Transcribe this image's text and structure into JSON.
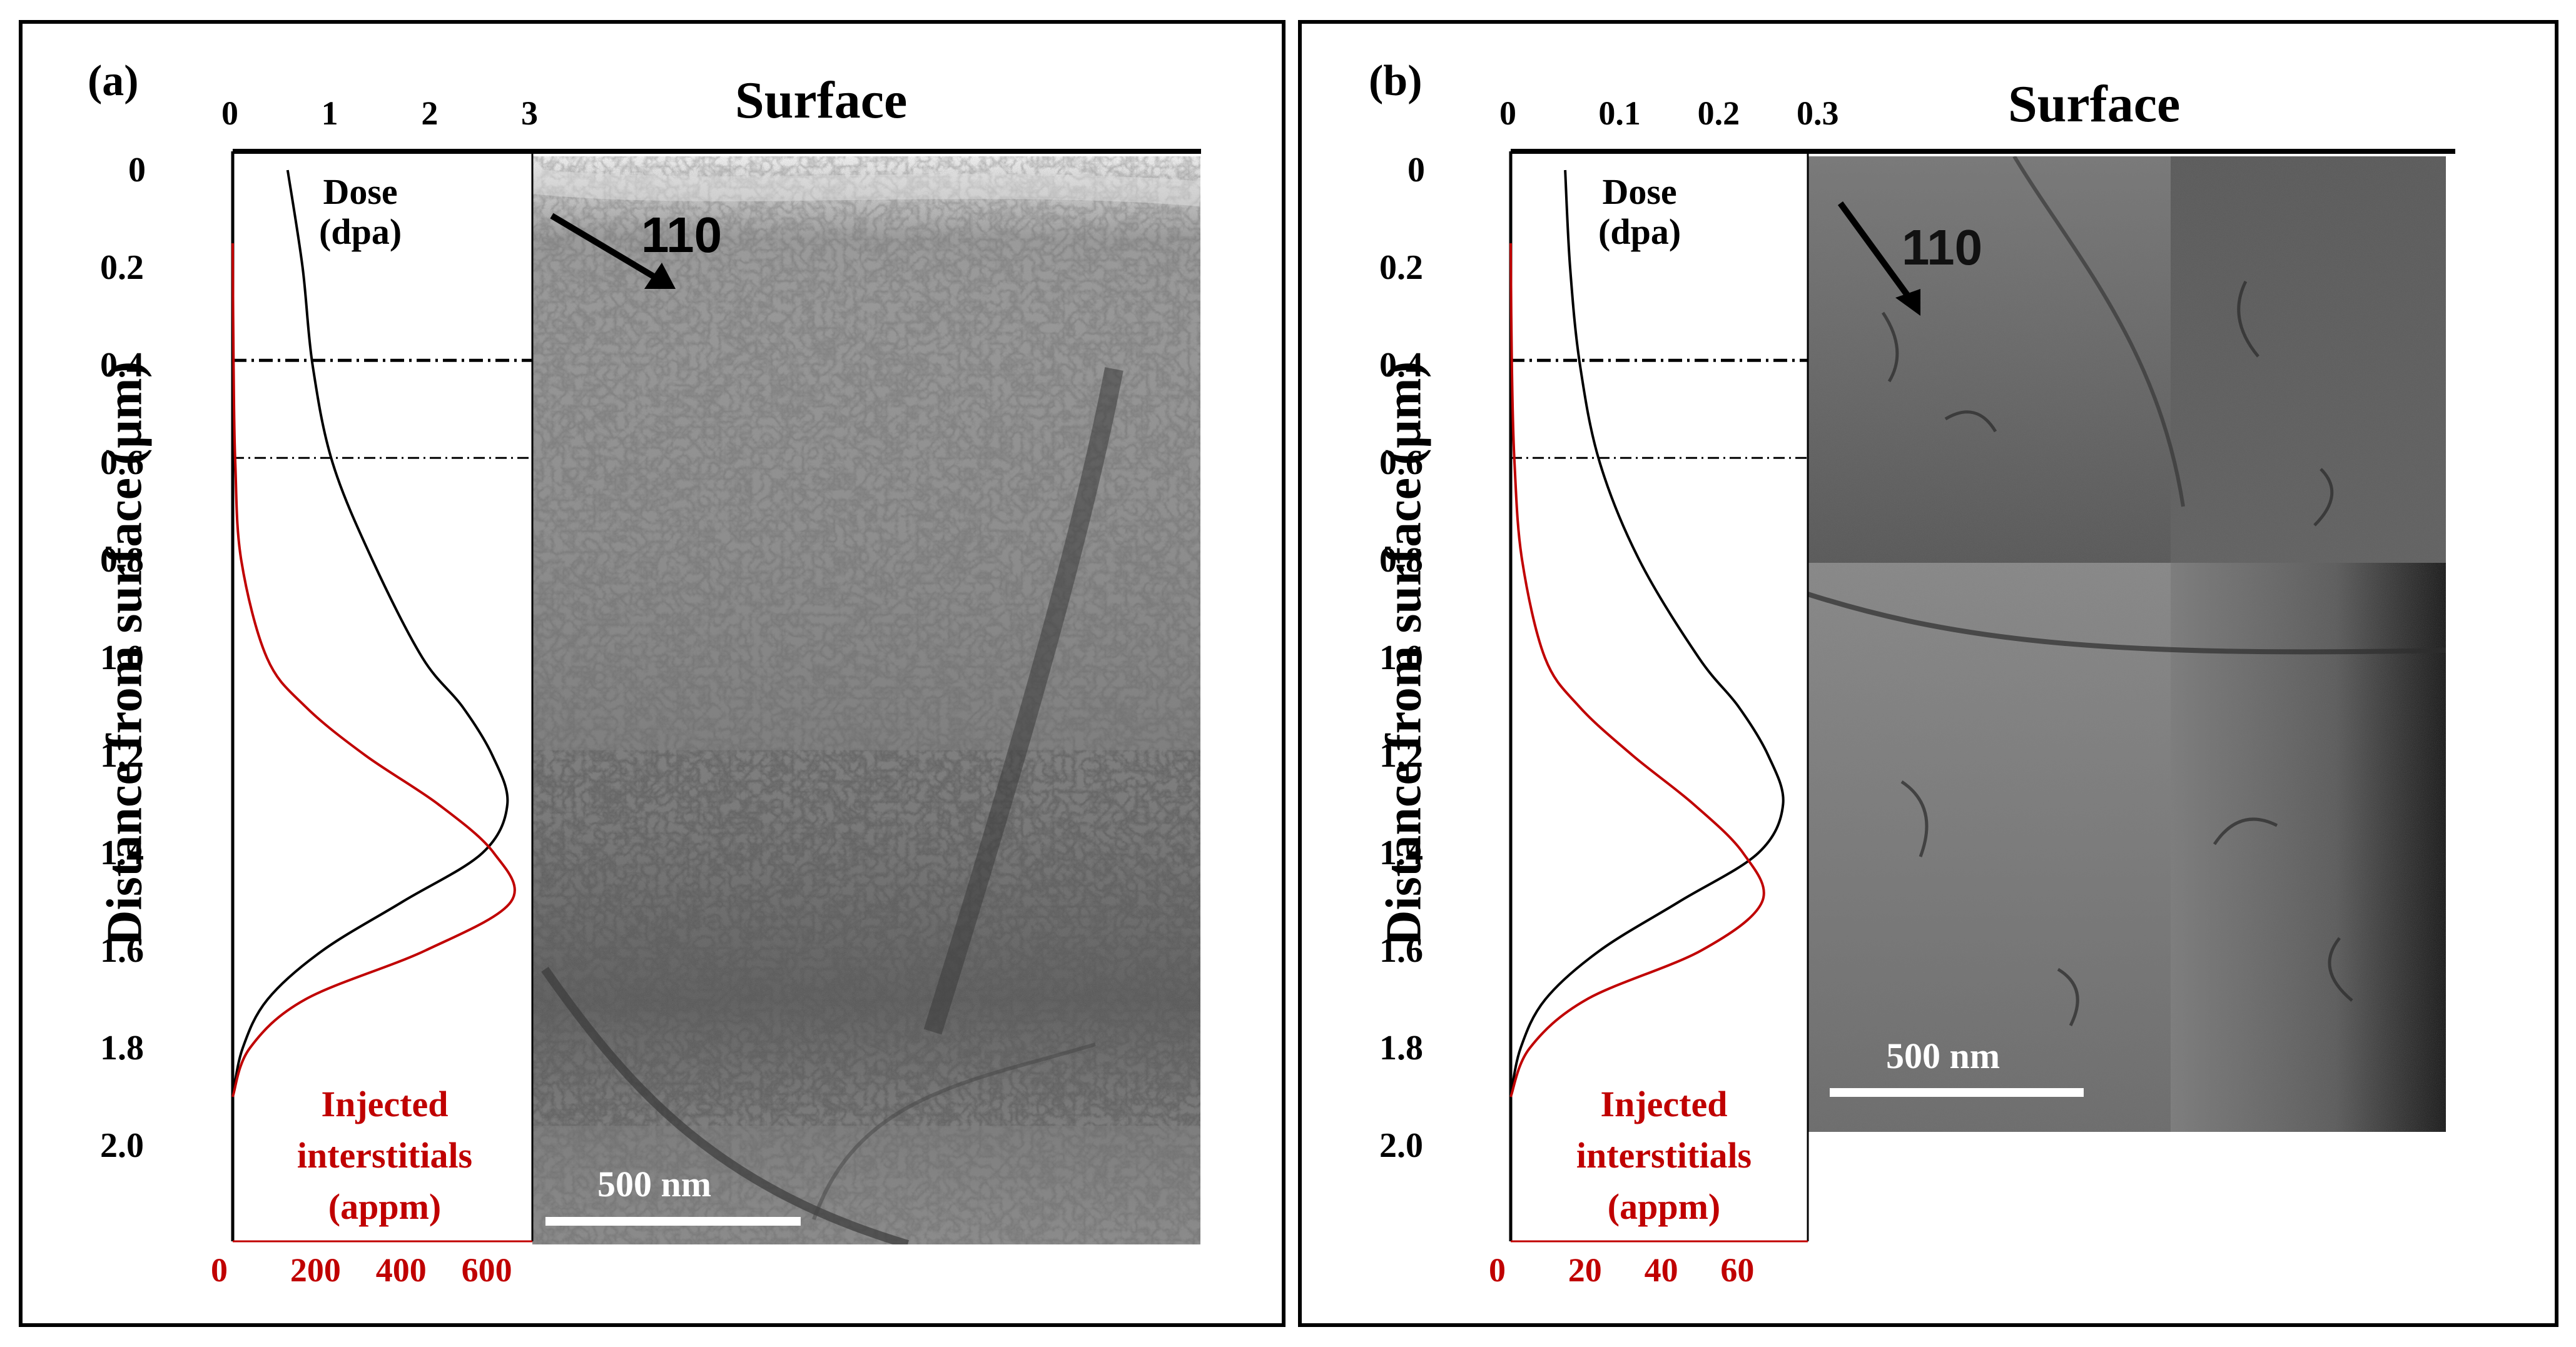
{
  "figure": {
    "panels": [
      {
        "label": "(a)",
        "surface_label": "Surface",
        "direction_label": "110",
        "scale_bar_label": "500 nm",
        "dose_label_line1": "Dose",
        "dose_label_line2": "(dpa)",
        "inj_label_line1": "Injected",
        "inj_label_line2": "interstitials",
        "inj_label_line3": "(appm)",
        "top_ticks": [
          "0",
          "1",
          "2",
          "3"
        ],
        "bottom_ticks": [
          "0",
          "200",
          "400",
          "600"
        ],
        "y_ticks": [
          "0",
          "0.2",
          "0.4",
          "0.6",
          "0.8",
          "1.0",
          "1.2",
          "1.4",
          "1.6",
          "1.8",
          "2.0"
        ]
      },
      {
        "label": "(b)",
        "surface_label": "Surface",
        "direction_label": "110",
        "scale_bar_label": "500 nm",
        "dose_label_line1": "Dose",
        "dose_label_line2": "(dpa)",
        "inj_label_line1": "Injected",
        "inj_label_line2": "interstitials",
        "inj_label_line3": "(appm)",
        "top_ticks": [
          "0",
          "0.1",
          "0.2",
          "0.3"
        ],
        "bottom_ticks": [
          "0",
          "20",
          "40",
          "60"
        ],
        "y_ticks": [
          "0",
          "0.2",
          "0.4",
          "0.6",
          "0.8",
          "1.0",
          "1.2",
          "1.4",
          "1.6",
          "1.8",
          "2.0"
        ]
      }
    ],
    "y_axis_title": "Distance from surface (µm)"
  },
  "chart_data": [
    {
      "type": "line",
      "panel": "(a)",
      "ylabel": "Distance from surface (µm)",
      "ylim": [
        0,
        2.15
      ],
      "y_inverted": true,
      "dashed_lines_depth": [
        0.39,
        0.59
      ],
      "series": [
        {
          "name": "Dose (dpa)",
          "axis": "top",
          "xlim": [
            0,
            3
          ],
          "y": [
            0,
            0.2,
            0.4,
            0.6,
            0.8,
            1.0,
            1.1,
            1.2,
            1.3,
            1.4,
            1.5,
            1.6,
            1.7,
            1.8,
            1.9
          ],
          "x": [
            0.55,
            0.7,
            0.8,
            1.0,
            1.4,
            1.9,
            2.3,
            2.6,
            2.75,
            2.5,
            1.7,
            0.9,
            0.35,
            0.1,
            0.0
          ],
          "color": "#000000"
        },
        {
          "name": "Injected interstitials (appm)",
          "axis": "bottom",
          "xlim": [
            0,
            700
          ],
          "y": [
            0.15,
            0.4,
            0.6,
            0.8,
            1.0,
            1.1,
            1.2,
            1.3,
            1.4,
            1.5,
            1.6,
            1.7,
            1.8,
            1.9
          ],
          "x": [
            0,
            2,
            6,
            20,
            80,
            170,
            310,
            480,
            610,
            650,
            450,
            170,
            40,
            0
          ],
          "color": "#c00000"
        }
      ]
    },
    {
      "type": "line",
      "panel": "(b)",
      "ylabel": "Distance from surface (µm)",
      "ylim": [
        0,
        2.15
      ],
      "y_inverted": true,
      "dashed_lines_depth": [
        0.39,
        0.59
      ],
      "series": [
        {
          "name": "Dose (dpa)",
          "axis": "top",
          "xlim": [
            0,
            0.3
          ],
          "y": [
            0,
            0.2,
            0.4,
            0.6,
            0.8,
            1.0,
            1.1,
            1.2,
            1.3,
            1.4,
            1.5,
            1.6,
            1.7,
            1.8,
            1.9
          ],
          "x": [
            0.055,
            0.06,
            0.07,
            0.09,
            0.13,
            0.19,
            0.23,
            0.26,
            0.275,
            0.25,
            0.17,
            0.09,
            0.035,
            0.01,
            0.0
          ],
          "color": "#000000"
        },
        {
          "name": "Injected interstitials (appm)",
          "axis": "bottom",
          "xlim": [
            0,
            78
          ],
          "y": [
            0.15,
            0.4,
            0.6,
            0.8,
            1.0,
            1.1,
            1.2,
            1.3,
            1.4,
            1.5,
            1.6,
            1.7,
            1.8,
            1.9
          ],
          "x": [
            0,
            0.3,
            1,
            3,
            9,
            18,
            32,
            48,
            61,
            66,
            50,
            20,
            5,
            0
          ],
          "color": "#c00000"
        }
      ]
    }
  ]
}
